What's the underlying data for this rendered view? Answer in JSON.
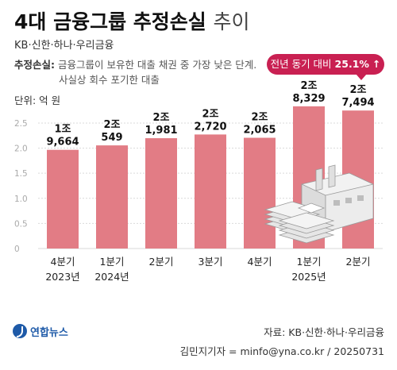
{
  "header": {
    "title_bold": "4대 금융그룹 추정손실",
    "title_light": "추이",
    "subtitle": "KB·신한·하나·우리금융",
    "definition_label": "추정손실:",
    "definition_line1": "금융그룹이 보유한 대출 채권 중 가장 낮은 단계.",
    "definition_line2": "사실상 회수 포기한 대출",
    "unit": "단위: 억 원"
  },
  "callout": {
    "prefix": "전년 동기 대비",
    "value": "25.1%",
    "arrow": "↑"
  },
  "chart_data": {
    "type": "bar",
    "categories": [
      "4분기 2023년",
      "1분기 2024년",
      "2분기",
      "3분기",
      "4분기",
      "1분기 2025년",
      "2분기"
    ],
    "category_lines": [
      [
        "4분기",
        "2023년"
      ],
      [
        "1분기",
        "2024년"
      ],
      [
        "2분기",
        ""
      ],
      [
        "3분기",
        ""
      ],
      [
        "4분기",
        ""
      ],
      [
        "1분기",
        "2025년"
      ],
      [
        "2분기",
        ""
      ]
    ],
    "values": [
      19664,
      20549,
      21981,
      22720,
      22065,
      28329,
      27494
    ],
    "value_labels": [
      [
        "1조",
        "9,664"
      ],
      [
        "2조",
        "549"
      ],
      [
        "2조",
        "1,981"
      ],
      [
        "2조",
        "2,720"
      ],
      [
        "2조",
        "2,065"
      ],
      [
        "2조",
        "8,329"
      ],
      [
        "2조",
        "7,494"
      ]
    ],
    "y_ticks": [
      "0",
      "0.5",
      "1.0",
      "1.5",
      "2.0",
      "2.5"
    ],
    "y_tick_values": [
      0,
      5000,
      10000,
      15000,
      20000,
      25000
    ],
    "ylim": [
      0,
      28000
    ],
    "grid": true,
    "bar_color": "#e27c85"
  },
  "footer": {
    "source": "자료: KB·신한·하나·우리금융",
    "credit": "김민지기자 = minfo@yna.co.kr / 20250731",
    "logo_text": "연합뉴스"
  }
}
